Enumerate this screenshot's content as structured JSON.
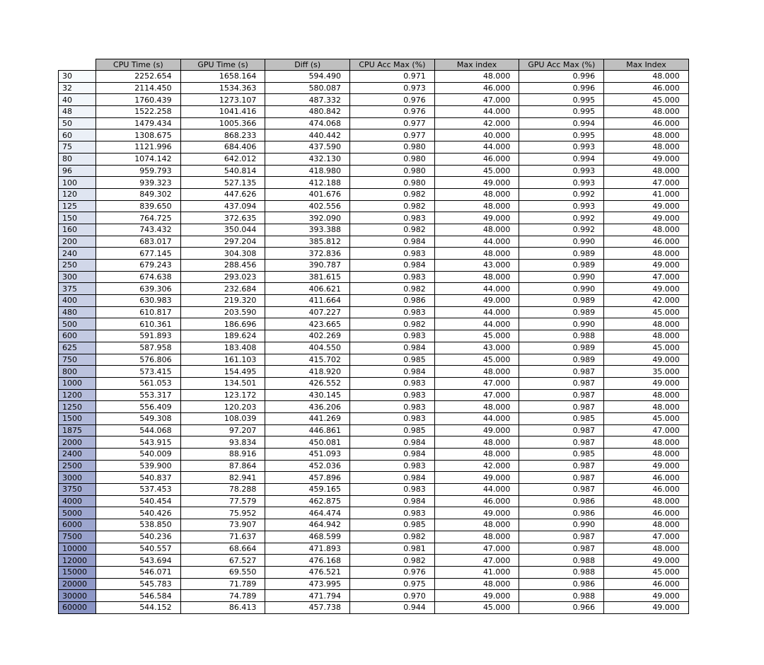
{
  "chart_data": {
    "type": "table",
    "columns": [
      "CPU Time (s)",
      "GPU Time (s)",
      "Diff (s)",
      "CPU Acc Max (%)",
      "Max index",
      "GPU Acc Max (%)",
      "Max Index"
    ],
    "row_labels": [
      "30",
      "32",
      "40",
      "48",
      "50",
      "60",
      "75",
      "80",
      "96",
      "100",
      "120",
      "125",
      "150",
      "160",
      "200",
      "240",
      "250",
      "300",
      "375",
      "400",
      "480",
      "500",
      "600",
      "625",
      "750",
      "800",
      "1000",
      "1200",
      "1250",
      "1500",
      "1875",
      "2000",
      "2400",
      "2500",
      "3000",
      "3750",
      "4000",
      "5000",
      "6000",
      "7500",
      "10000",
      "12000",
      "15000",
      "20000",
      "30000",
      "60000"
    ],
    "rows": [
      [
        "2252.654",
        "1658.164",
        "594.490",
        "0.971",
        "48.000",
        "0.996",
        "48.000"
      ],
      [
        "2114.450",
        "1534.363",
        "580.087",
        "0.973",
        "46.000",
        "0.996",
        "46.000"
      ],
      [
        "1760.439",
        "1273.107",
        "487.332",
        "0.976",
        "47.000",
        "0.995",
        "45.000"
      ],
      [
        "1522.258",
        "1041.416",
        "480.842",
        "0.976",
        "44.000",
        "0.995",
        "48.000"
      ],
      [
        "1479.434",
        "1005.366",
        "474.068",
        "0.977",
        "42.000",
        "0.994",
        "46.000"
      ],
      [
        "1308.675",
        "868.233",
        "440.442",
        "0.977",
        "40.000",
        "0.995",
        "48.000"
      ],
      [
        "1121.996",
        "684.406",
        "437.590",
        "0.980",
        "44.000",
        "0.993",
        "48.000"
      ],
      [
        "1074.142",
        "642.012",
        "432.130",
        "0.980",
        "46.000",
        "0.994",
        "49.000"
      ],
      [
        "959.793",
        "540.814",
        "418.980",
        "0.980",
        "45.000",
        "0.993",
        "48.000"
      ],
      [
        "939.323",
        "527.135",
        "412.188",
        "0.980",
        "49.000",
        "0.993",
        "47.000"
      ],
      [
        "849.302",
        "447.626",
        "401.676",
        "0.982",
        "48.000",
        "0.992",
        "41.000"
      ],
      [
        "839.650",
        "437.094",
        "402.556",
        "0.982",
        "48.000",
        "0.993",
        "49.000"
      ],
      [
        "764.725",
        "372.635",
        "392.090",
        "0.983",
        "49.000",
        "0.992",
        "49.000"
      ],
      [
        "743.432",
        "350.044",
        "393.388",
        "0.982",
        "48.000",
        "0.992",
        "48.000"
      ],
      [
        "683.017",
        "297.204",
        "385.812",
        "0.984",
        "44.000",
        "0.990",
        "46.000"
      ],
      [
        "677.145",
        "304.308",
        "372.836",
        "0.983",
        "48.000",
        "0.989",
        "48.000"
      ],
      [
        "679.243",
        "288.456",
        "390.787",
        "0.984",
        "43.000",
        "0.989",
        "49.000"
      ],
      [
        "674.638",
        "293.023",
        "381.615",
        "0.983",
        "48.000",
        "0.990",
        "47.000"
      ],
      [
        "639.306",
        "232.684",
        "406.621",
        "0.982",
        "44.000",
        "0.990",
        "49.000"
      ],
      [
        "630.983",
        "219.320",
        "411.664",
        "0.986",
        "49.000",
        "0.989",
        "42.000"
      ],
      [
        "610.817",
        "203.590",
        "407.227",
        "0.983",
        "44.000",
        "0.989",
        "45.000"
      ],
      [
        "610.361",
        "186.696",
        "423.665",
        "0.982",
        "44.000",
        "0.990",
        "48.000"
      ],
      [
        "591.893",
        "189.624",
        "402.269",
        "0.983",
        "45.000",
        "0.988",
        "48.000"
      ],
      [
        "587.958",
        "183.408",
        "404.550",
        "0.984",
        "43.000",
        "0.989",
        "45.000"
      ],
      [
        "576.806",
        "161.103",
        "415.702",
        "0.985",
        "45.000",
        "0.989",
        "49.000"
      ],
      [
        "573.415",
        "154.495",
        "418.920",
        "0.984",
        "48.000",
        "0.987",
        "35.000"
      ],
      [
        "561.053",
        "134.501",
        "426.552",
        "0.983",
        "47.000",
        "0.987",
        "49.000"
      ],
      [
        "553.317",
        "123.172",
        "430.145",
        "0.983",
        "47.000",
        "0.987",
        "48.000"
      ],
      [
        "556.409",
        "120.203",
        "436.206",
        "0.983",
        "48.000",
        "0.987",
        "48.000"
      ],
      [
        "549.308",
        "108.039",
        "441.269",
        "0.983",
        "44.000",
        "0.985",
        "45.000"
      ],
      [
        "544.068",
        "97.207",
        "446.861",
        "0.985",
        "49.000",
        "0.987",
        "47.000"
      ],
      [
        "543.915",
        "93.834",
        "450.081",
        "0.984",
        "48.000",
        "0.987",
        "48.000"
      ],
      [
        "540.009",
        "88.916",
        "451.093",
        "0.984",
        "48.000",
        "0.985",
        "48.000"
      ],
      [
        "539.900",
        "87.864",
        "452.036",
        "0.983",
        "42.000",
        "0.987",
        "49.000"
      ],
      [
        "540.837",
        "82.941",
        "457.896",
        "0.984",
        "49.000",
        "0.987",
        "46.000"
      ],
      [
        "537.453",
        "78.288",
        "459.165",
        "0.983",
        "44.000",
        "0.987",
        "46.000"
      ],
      [
        "540.454",
        "77.579",
        "462.875",
        "0.984",
        "46.000",
        "0.986",
        "48.000"
      ],
      [
        "540.426",
        "75.952",
        "464.474",
        "0.983",
        "49.000",
        "0.986",
        "46.000"
      ],
      [
        "538.850",
        "73.907",
        "464.942",
        "0.985",
        "48.000",
        "0.990",
        "48.000"
      ],
      [
        "540.236",
        "71.637",
        "468.599",
        "0.982",
        "48.000",
        "0.987",
        "47.000"
      ],
      [
        "540.557",
        "68.664",
        "471.893",
        "0.981",
        "47.000",
        "0.987",
        "48.000"
      ],
      [
        "543.694",
        "67.527",
        "476.168",
        "0.982",
        "47.000",
        "0.988",
        "49.000"
      ],
      [
        "546.071",
        "69.550",
        "476.521",
        "0.976",
        "41.000",
        "0.988",
        "45.000"
      ],
      [
        "545.783",
        "71.789",
        "473.995",
        "0.975",
        "48.000",
        "0.986",
        "46.000"
      ],
      [
        "546.584",
        "74.789",
        "471.794",
        "0.970",
        "49.000",
        "0.988",
        "49.000"
      ],
      [
        "544.152",
        "86.413",
        "457.738",
        "0.944",
        "45.000",
        "0.966",
        "49.000"
      ]
    ],
    "header_color": "#bfbfbf",
    "row_label_colormap": {
      "name": "BuPu",
      "start_color": "#f7fbfd",
      "end_color": "#8c96c6"
    }
  }
}
